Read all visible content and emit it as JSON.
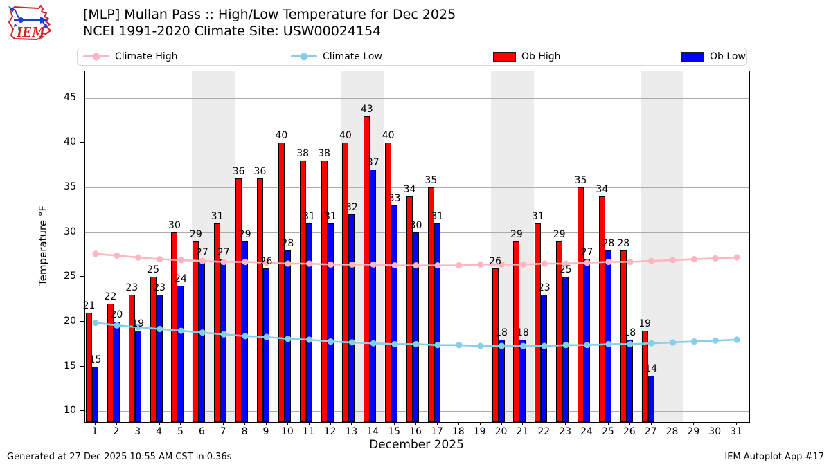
{
  "header": {
    "logo_text": "IEM",
    "title_line1": "[MLP] Mullan Pass :: High/Low Temperature for Dec 2025",
    "title_line2": "NCEI 1991-2020 Climate Site: USW00024154"
  },
  "legend": [
    {
      "label": "Climate High",
      "type": "line",
      "color": "#ffb6c1"
    },
    {
      "label": "Climate Low",
      "type": "line",
      "color": "#87ceeb"
    },
    {
      "label": "Ob High",
      "type": "patch",
      "color": "#ff0000"
    },
    {
      "label": "Ob Low",
      "type": "patch",
      "color": "#0000ff"
    }
  ],
  "chart_data": {
    "type": "bar",
    "title": "[MLP] Mullan Pass :: High/Low Temperature for Dec 2025",
    "subtitle": "NCEI 1991-2020 Climate Site: USW00024154",
    "xlabel": "December 2025",
    "ylabel": "Temperature °F",
    "x": [
      1,
      2,
      3,
      4,
      5,
      6,
      7,
      8,
      9,
      10,
      11,
      12,
      13,
      14,
      15,
      16,
      17,
      18,
      19,
      20,
      21,
      22,
      23,
      24,
      25,
      26,
      27,
      28,
      29,
      30,
      31
    ],
    "yticks": [
      10,
      15,
      20,
      25,
      30,
      35,
      40,
      45
    ],
    "ylim": [
      8.8,
      48
    ],
    "grid": true,
    "legend_position": "top",
    "weekend_bands": [
      [
        6,
        7
      ],
      [
        13,
        14
      ],
      [
        20,
        21
      ],
      [
        27,
        28
      ]
    ],
    "series": [
      {
        "name": "Ob High",
        "type": "bar",
        "color": "#ff0000",
        "values": [
          21,
          22,
          23,
          25,
          30,
          29,
          31,
          36,
          36,
          40,
          38,
          38,
          40,
          43,
          40,
          34,
          35,
          null,
          null,
          26,
          29,
          31,
          29,
          35,
          34,
          28,
          19,
          null,
          null,
          null,
          null
        ]
      },
      {
        "name": "Ob Low",
        "type": "bar",
        "color": "#0000ff",
        "values": [
          15,
          20,
          19,
          23,
          24,
          27,
          27,
          29,
          26,
          28,
          31,
          31,
          32,
          37,
          33,
          30,
          31,
          null,
          null,
          18,
          18,
          23,
          25,
          27,
          28,
          18,
          14,
          null,
          null,
          null,
          null
        ]
      },
      {
        "name": "Climate High",
        "type": "line",
        "color": "#ffb6c1",
        "values": [
          27.6,
          27.4,
          27.2,
          27.0,
          26.9,
          26.8,
          26.7,
          26.7,
          26.6,
          26.5,
          26.5,
          26.4,
          26.4,
          26.4,
          26.3,
          26.3,
          26.3,
          26.3,
          26.4,
          26.4,
          26.4,
          26.5,
          26.5,
          26.6,
          26.7,
          26.7,
          26.8,
          26.9,
          27.0,
          27.1,
          27.2
        ]
      },
      {
        "name": "Climate Low",
        "type": "line",
        "color": "#87ceeb",
        "values": [
          19.9,
          19.6,
          19.4,
          19.2,
          19.0,
          18.8,
          18.6,
          18.4,
          18.3,
          18.1,
          18.0,
          17.8,
          17.7,
          17.6,
          17.5,
          17.5,
          17.4,
          17.4,
          17.3,
          17.3,
          17.3,
          17.3,
          17.4,
          17.4,
          17.5,
          17.5,
          17.6,
          17.7,
          17.8,
          17.9,
          18.0
        ]
      }
    ]
  },
  "colors": {
    "ob_high": "#ff0000",
    "ob_low": "#0000ff",
    "climate_high": "#ffb6c1",
    "climate_low": "#87ceeb",
    "weekend_band": "#ececec",
    "gridline": "#ababab",
    "logo_red": "#d2232a",
    "logo_blue": "#1b3fd6"
  },
  "footer": {
    "left": "Generated at 27 Dec 2025 10:55 AM CST in 0.36s",
    "right": "IEM Autoplot App #17"
  }
}
